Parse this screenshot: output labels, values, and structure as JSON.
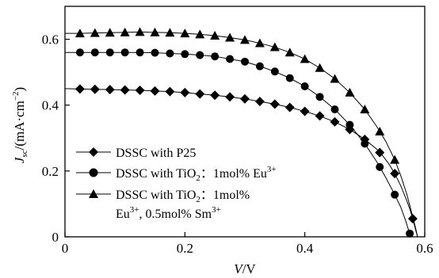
{
  "chart_data": {
    "type": "line",
    "xlabel": {
      "symbol": "V",
      "unit": "/V"
    },
    "ylabel": {
      "symbol": "J",
      "sub": "sc",
      "unit": "/(mA·cm",
      "sup": "−2",
      "close": ")"
    },
    "xlim": [
      0,
      0.6
    ],
    "ylim": [
      0,
      0.7
    ],
    "x_ticks": [
      0,
      0.2,
      0.4,
      0.6
    ],
    "x_tick_labels": [
      "0",
      "0.2",
      "0.4",
      "0.6"
    ],
    "y_ticks": [
      0,
      0.2,
      0.4,
      0.6
    ],
    "y_tick_labels": [
      "0",
      "0.2",
      "0.4",
      "0.6"
    ],
    "grid": false,
    "legend": {
      "position": "bottom-left",
      "entries": [
        {
          "line1": "DSSC with P25",
          "line2": ""
        },
        {
          "line1": "DSSC with TiO",
          "sub": "2",
          "colon": "：",
          "rest": "1mol% Eu",
          "sup": "3+",
          "line2": ""
        },
        {
          "line1": "DSSC with TiO",
          "sub": "2",
          "colon": "：",
          "rest": "1mol%",
          "sup": "",
          "line2_main": "Eu",
          "line2_sup": "3+",
          "line2_rest": ", 0.5mol% Sm",
          "line2_sup2": "3+"
        }
      ]
    },
    "series": [
      {
        "marker": "diamond",
        "points": [
          [
            0.0,
            0.45
          ],
          [
            0.025,
            0.449
          ],
          [
            0.05,
            0.448
          ],
          [
            0.075,
            0.447
          ],
          [
            0.1,
            0.446
          ],
          [
            0.125,
            0.445
          ],
          [
            0.15,
            0.443
          ],
          [
            0.175,
            0.441
          ],
          [
            0.2,
            0.438
          ],
          [
            0.225,
            0.434
          ],
          [
            0.25,
            0.43
          ],
          [
            0.275,
            0.425
          ],
          [
            0.3,
            0.419
          ],
          [
            0.325,
            0.411
          ],
          [
            0.35,
            0.403
          ],
          [
            0.375,
            0.393
          ],
          [
            0.4,
            0.381
          ],
          [
            0.425,
            0.367
          ],
          [
            0.45,
            0.349
          ],
          [
            0.475,
            0.326
          ],
          [
            0.5,
            0.296
          ],
          [
            0.52,
            0.266
          ],
          [
            0.53,
            0.246
          ],
          [
            0.54,
            0.222
          ],
          [
            0.55,
            0.192
          ],
          [
            0.56,
            0.155
          ],
          [
            0.57,
            0.11
          ],
          [
            0.575,
            0.085
          ],
          [
            0.58,
            0.055
          ],
          [
            0.585,
            0.02
          ],
          [
            0.588,
            0.0
          ]
        ],
        "marker_x": [
          0.025,
          0.05,
          0.075,
          0.1,
          0.125,
          0.15,
          0.175,
          0.2,
          0.225,
          0.25,
          0.275,
          0.3,
          0.325,
          0.35,
          0.375,
          0.4,
          0.425,
          0.45,
          0.475,
          0.5,
          0.525,
          0.55,
          0.58
        ]
      },
      {
        "marker": "circle",
        "points": [
          [
            0.0,
            0.56
          ],
          [
            0.025,
            0.56
          ],
          [
            0.05,
            0.56
          ],
          [
            0.075,
            0.56
          ],
          [
            0.1,
            0.56
          ],
          [
            0.125,
            0.56
          ],
          [
            0.15,
            0.559
          ],
          [
            0.175,
            0.557
          ],
          [
            0.2,
            0.555
          ],
          [
            0.225,
            0.552
          ],
          [
            0.25,
            0.548
          ],
          [
            0.275,
            0.54
          ],
          [
            0.3,
            0.532
          ],
          [
            0.325,
            0.518
          ],
          [
            0.35,
            0.502
          ],
          [
            0.375,
            0.482
          ],
          [
            0.4,
            0.457
          ],
          [
            0.425,
            0.425
          ],
          [
            0.45,
            0.387
          ],
          [
            0.475,
            0.34
          ],
          [
            0.5,
            0.283
          ],
          [
            0.52,
            0.228
          ],
          [
            0.535,
            0.18
          ],
          [
            0.55,
            0.128
          ],
          [
            0.56,
            0.09
          ],
          [
            0.568,
            0.05
          ],
          [
            0.574,
            0.015
          ],
          [
            0.577,
            0.0
          ]
        ],
        "marker_x": [
          0.025,
          0.05,
          0.075,
          0.1,
          0.125,
          0.15,
          0.175,
          0.2,
          0.225,
          0.25,
          0.275,
          0.3,
          0.325,
          0.35,
          0.375,
          0.4,
          0.425,
          0.45,
          0.475,
          0.5,
          0.525,
          0.55,
          0.575
        ]
      },
      {
        "marker": "triangle",
        "points": [
          [
            0.0,
            0.618
          ],
          [
            0.025,
            0.618
          ],
          [
            0.05,
            0.619
          ],
          [
            0.075,
            0.62
          ],
          [
            0.1,
            0.621
          ],
          [
            0.125,
            0.622
          ],
          [
            0.15,
            0.621
          ],
          [
            0.175,
            0.62
          ],
          [
            0.2,
            0.618
          ],
          [
            0.225,
            0.615
          ],
          [
            0.25,
            0.611
          ],
          [
            0.275,
            0.605
          ],
          [
            0.3,
            0.598
          ],
          [
            0.325,
            0.588
          ],
          [
            0.35,
            0.576
          ],
          [
            0.375,
            0.56
          ],
          [
            0.4,
            0.54
          ],
          [
            0.425,
            0.513
          ],
          [
            0.45,
            0.48
          ],
          [
            0.475,
            0.438
          ],
          [
            0.5,
            0.387
          ],
          [
            0.52,
            0.335
          ],
          [
            0.535,
            0.29
          ],
          [
            0.55,
            0.234
          ],
          [
            0.56,
            0.186
          ],
          [
            0.57,
            0.13
          ],
          [
            0.578,
            0.075
          ],
          [
            0.585,
            0.025
          ],
          [
            0.588,
            0.0
          ]
        ],
        "marker_x": [
          0.025,
          0.05,
          0.075,
          0.1,
          0.125,
          0.15,
          0.175,
          0.2,
          0.225,
          0.25,
          0.275,
          0.3,
          0.325,
          0.35,
          0.375,
          0.4,
          0.425,
          0.45,
          0.475,
          0.5,
          0.525,
          0.55
        ]
      }
    ]
  }
}
